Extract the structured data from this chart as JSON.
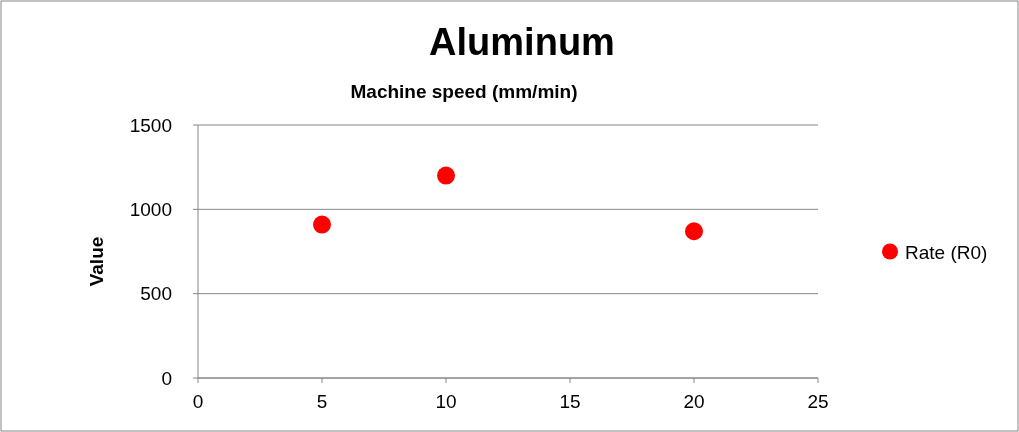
{
  "chart_data": {
    "type": "scatter",
    "title": "Aluminum",
    "xlabel": "Machine speed (mm/min)",
    "ylabel": "Value",
    "x": [
      5,
      10,
      20
    ],
    "series": [
      {
        "name": "Rate (R0)",
        "color": "#ff0000",
        "values": [
          910,
          1200,
          870
        ]
      }
    ],
    "xlim": [
      0,
      25
    ],
    "xticks": [
      0,
      5,
      10,
      15,
      20,
      25
    ],
    "ylim": [
      0,
      1500
    ],
    "yticks": [
      0,
      500,
      1000,
      1500
    ],
    "grid": "y",
    "legend": "right",
    "marker": "circle"
  }
}
